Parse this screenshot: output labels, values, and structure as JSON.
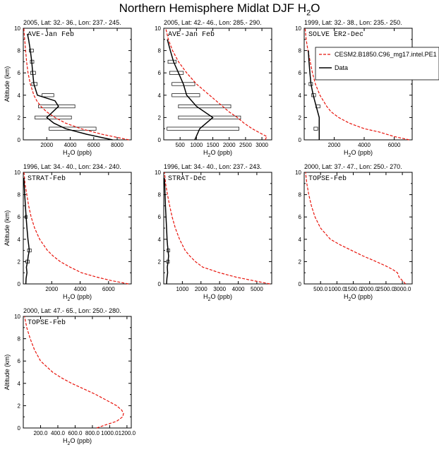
{
  "page_title": "Northern Hemisphere Midlat DJF",
  "page_title_formula": {
    "base": "H",
    "sub": "2",
    "tail": "O"
  },
  "chart_data": [
    {
      "type": "line",
      "header": "2005, Lat: 32.- 36., Lon: 237.- 245.",
      "label": "AVE-Jan Feb",
      "xlabel": "H2O (ppb)",
      "ylabel": "Altitude (km)",
      "xlim": [
        0,
        9200
      ],
      "ylim": [
        0,
        10
      ],
      "xticks": [
        2000,
        4000,
        6000,
        8000
      ],
      "xtick_labels": [
        "2000",
        "4000",
        "6000",
        "8000"
      ],
      "yticks": [
        0,
        2,
        4,
        6,
        8,
        10
      ],
      "ytick_labels": [
        "0",
        "2",
        "4",
        "6",
        "8",
        "10"
      ],
      "model": {
        "name": "CESM2.B1850.C96_mg17.intel.PE1",
        "y": [
          0,
          0.5,
          1,
          1.5,
          2,
          2.5,
          3,
          3.5,
          4,
          5,
          6,
          7,
          8,
          9,
          9.5,
          10
        ],
        "x": [
          9000,
          6700,
          4900,
          3600,
          2700,
          2000,
          1500,
          1150,
          900,
          600,
          400,
          280,
          200,
          120,
          80,
          50
        ]
      },
      "data": {
        "name": "Data",
        "y": [
          0,
          0.5,
          1,
          1.5,
          2,
          2.5,
          3,
          3.5,
          4,
          5,
          6,
          7,
          8,
          9,
          9.5
        ],
        "x": [
          7600,
          5400,
          3600,
          2600,
          2000,
          2500,
          3000,
          2700,
          1200,
          900,
          800,
          720,
          600,
          450,
          350
        ]
      },
      "bars": [
        {
          "y": 1,
          "lo": 2200,
          "hi": 6200
        },
        {
          "y": 2,
          "lo": 1000,
          "hi": 4100
        },
        {
          "y": 3,
          "lo": 1300,
          "hi": 4400
        },
        {
          "y": 4,
          "lo": 1600,
          "hi": 2600
        },
        {
          "y": 5,
          "lo": 720,
          "hi": 1180
        },
        {
          "y": 6,
          "lo": 620,
          "hi": 1040
        },
        {
          "y": 7,
          "lo": 600,
          "hi": 900
        },
        {
          "y": 8,
          "lo": 520,
          "hi": 860
        }
      ]
    },
    {
      "type": "line",
      "header": "2005, Lat: 42.- 46., Lon: 285.- 290.",
      "label": "AVE-Jan Feb",
      "xlabel": "H2O (ppb)",
      "ylabel": "",
      "xlim": [
        0,
        3300
      ],
      "ylim": [
        0,
        10
      ],
      "xticks": [
        500,
        1000,
        1500,
        2000,
        2500,
        3000
      ],
      "xtick_labels": [
        "500",
        "1000",
        "1500",
        "2000",
        "2500",
        "3000"
      ],
      "yticks": [
        0,
        2,
        4,
        6,
        8,
        10
      ],
      "ytick_labels": [
        "0",
        "2",
        "4",
        "6",
        "8",
        "10"
      ],
      "model": {
        "name": "CESM2.B1850.C96_mg17.intel.PE1",
        "y": [
          0,
          0.3,
          0.6,
          1,
          1.5,
          2,
          2.5,
          3,
          3.5,
          4,
          5,
          6,
          7,
          8,
          9,
          10
        ],
        "x": [
          3100,
          3150,
          2950,
          2700,
          2450,
          2250,
          2000,
          1800,
          1600,
          1400,
          1000,
          700,
          450,
          270,
          140,
          60
        ]
      },
      "data": {
        "name": "Data",
        "y": [
          0,
          1,
          2,
          3,
          4,
          5,
          6,
          7,
          8,
          9
        ],
        "x": [
          950,
          1100,
          1500,
          1000,
          700,
          600,
          450,
          300,
          200,
          110
        ]
      },
      "bars": [
        {
          "y": 1,
          "lo": 100,
          "hi": 2300
        },
        {
          "y": 2,
          "lo": 450,
          "hi": 2350
        },
        {
          "y": 3,
          "lo": 450,
          "hi": 2050
        },
        {
          "y": 4,
          "lo": 250,
          "hi": 1100
        },
        {
          "y": 5,
          "lo": 250,
          "hi": 950
        },
        {
          "y": 6,
          "lo": 180,
          "hi": 600
        },
        {
          "y": 7,
          "lo": 130,
          "hi": 380
        }
      ]
    },
    {
      "type": "line",
      "header": "1999, Lat: 32.- 38., Lon: 235.- 250.",
      "label": "SOLVE ER2-Dec",
      "xlabel": "H2O (ppb)",
      "ylabel": "",
      "xlim": [
        0,
        7200
      ],
      "ylim": [
        0,
        10
      ],
      "xticks": [
        2000,
        4000,
        6000
      ],
      "xtick_labels": [
        "2000",
        "4000",
        "6000"
      ],
      "yticks": [
        0,
        2,
        4,
        6,
        8,
        10
      ],
      "ytick_labels": [
        "0",
        "2",
        "4",
        "6",
        "8",
        "10"
      ],
      "legend": {
        "position": "top-right",
        "model_label": "CESM2.B1850.C96_mg17.intel.PE1",
        "data_label": "Data"
      },
      "model": {
        "name": "CESM2.B1850.C96_mg17.intel.PE1",
        "y": [
          0,
          0.3,
          0.7,
          1,
          1.5,
          2,
          2.5,
          3,
          4,
          5,
          6,
          7,
          8,
          9,
          10
        ],
        "x": [
          7000,
          6000,
          5000,
          4000,
          3000,
          2300,
          1800,
          1500,
          1050,
          750,
          550,
          400,
          250,
          130,
          60
        ]
      },
      "data": {
        "name": "Data",
        "y": [
          0,
          1,
          2,
          3,
          4,
          5,
          6,
          7,
          8
        ],
        "x": [
          1000,
          1000,
          1000,
          800,
          600,
          450,
          380,
          320,
          280
        ]
      },
      "bars": [
        {
          "y": 1,
          "lo": 650,
          "hi": 900
        },
        {
          "y": 3,
          "lo": 780,
          "hi": 1050
        },
        {
          "y": 4,
          "lo": 500,
          "hi": 760
        },
        {
          "y": 5,
          "lo": 320,
          "hi": 560
        }
      ]
    },
    {
      "type": "line",
      "header": "1996, Lat: 34.- 40., Lon: 234.- 240.",
      "label": "STRAT-Feb",
      "xlabel": "H2O (ppb)",
      "ylabel": "Altitude (km)",
      "xlim": [
        0,
        7600
      ],
      "ylim": [
        0,
        10
      ],
      "xticks": [
        2000,
        4000,
        6000
      ],
      "xtick_labels": [
        "2000",
        "4000",
        "6000"
      ],
      "yticks": [
        0,
        2,
        4,
        6,
        8,
        10
      ],
      "ytick_labels": [
        "0",
        "2",
        "4",
        "6",
        "8",
        "10"
      ],
      "model": {
        "name": "CESM2.B1850.C96_mg17.intel.PE1",
        "y": [
          0,
          0.3,
          0.6,
          1,
          1.5,
          2,
          2.5,
          3,
          4,
          5,
          6,
          7,
          8,
          9,
          10
        ],
        "x": [
          7400,
          6200,
          5200,
          4100,
          3300,
          2600,
          2100,
          1700,
          1150,
          800,
          550,
          380,
          250,
          120,
          50
        ]
      },
      "data": {
        "name": "Data",
        "y": [
          0,
          0.5,
          1,
          1.5,
          2,
          2.5,
          3,
          3.5,
          4,
          5,
          6,
          7,
          8,
          9,
          9.5
        ],
        "x": [
          180,
          200,
          260,
          220,
          300,
          350,
          420,
          380,
          330,
          260,
          200,
          150,
          100,
          60,
          40
        ]
      },
      "bars": [
        {
          "y": 2,
          "lo": 180,
          "hi": 420
        },
        {
          "y": 3,
          "lo": 300,
          "hi": 560
        },
        {
          "y": 6,
          "lo": 130,
          "hi": 270
        }
      ]
    },
    {
      "type": "line",
      "header": "1996, Lat: 34.- 40., Lon: 237.- 243.",
      "label": "STRAT-Dec",
      "xlabel": "H2O (ppb)",
      "ylabel": "",
      "xlim": [
        0,
        5800
      ],
      "ylim": [
        0,
        10
      ],
      "xticks": [
        1000,
        2000,
        3000,
        4000,
        5000
      ],
      "xtick_labels": [
        "1000",
        "2000",
        "3000",
        "4000",
        "5000"
      ],
      "yticks": [
        0,
        2,
        4,
        6,
        8,
        10
      ],
      "ytick_labels": [
        "0",
        "2",
        "4",
        "6",
        "8",
        "10"
      ],
      "model": {
        "name": "CESM2.B1850.C96_mg17.intel.PE1",
        "y": [
          0,
          0.3,
          0.6,
          1,
          1.5,
          2,
          2.5,
          3,
          4,
          5,
          6,
          7,
          8,
          9,
          10
        ],
        "x": [
          5700,
          4800,
          3900,
          3000,
          2100,
          1700,
          1400,
          1150,
          850,
          620,
          450,
          320,
          200,
          100,
          40
        ]
      },
      "data": {
        "name": "Data",
        "y": [
          0,
          0.5,
          1,
          1.5,
          2,
          2.5,
          3,
          3.5,
          4,
          5,
          6,
          7,
          8,
          9,
          9.5
        ],
        "x": [
          150,
          170,
          210,
          190,
          230,
          260,
          230,
          200,
          180,
          150,
          120,
          90,
          70,
          50,
          30
        ]
      },
      "bars": [
        {
          "y": 2,
          "lo": 150,
          "hi": 300
        },
        {
          "y": 3,
          "lo": 170,
          "hi": 320
        }
      ]
    },
    {
      "type": "line",
      "header": "2000, Lat: 37.- 47., Lon: 250.- 270.",
      "label": "TOPSE-Feb",
      "xlabel": "H2O (ppb)",
      "ylabel": "",
      "xlim": [
        0,
        3300
      ],
      "ylim": [
        0,
        10
      ],
      "xticks": [
        500,
        1000,
        1500,
        2000,
        2500,
        3000
      ],
      "xtick_labels": [
        "500.0",
        "1000.0",
        "1500.0",
        "2000.0",
        "2500.0",
        "3000.0"
      ],
      "yticks": [
        0,
        2,
        4,
        6,
        8,
        10
      ],
      "ytick_labels": [
        "0",
        "2",
        "4",
        "6",
        "8",
        "10"
      ],
      "model": {
        "name": "CESM2.B1850.C96_mg17.intel.PE1",
        "y": [
          0,
          0.3,
          0.6,
          1,
          1.3,
          1.6,
          2,
          2.5,
          3,
          3.5,
          4,
          5,
          6,
          7,
          8,
          9,
          10
        ],
        "x": [
          3100,
          3000,
          2900,
          2850,
          2700,
          2500,
          2200,
          1800,
          1450,
          1100,
          800,
          500,
          330,
          220,
          140,
          80,
          40
        ]
      }
    },
    {
      "type": "line",
      "header": "2000, Lat: 47.- 65., Lon: 250.- 280.",
      "label": "TOPSE-Feb",
      "xlabel": "H2O (ppb)",
      "ylabel": "Altitude (km)",
      "xlim": [
        0,
        1250
      ],
      "ylim": [
        0,
        10
      ],
      "xticks": [
        200,
        400,
        600,
        800,
        1000,
        1200
      ],
      "xtick_labels": [
        "200.0",
        "400.0",
        "600.0",
        "800.0",
        "1000.0",
        "1200.0"
      ],
      "yticks": [
        0,
        2,
        4,
        6,
        8,
        10
      ],
      "ytick_labels": [
        "0",
        "2",
        "4",
        "6",
        "8",
        "10"
      ],
      "model": {
        "name": "CESM2.B1850.C96_mg17.intel.PE1",
        "y": [
          0,
          0.3,
          0.6,
          1,
          1.3,
          1.6,
          2,
          2.5,
          3,
          3.5,
          4,
          4.5,
          5,
          6,
          7,
          8,
          9,
          10
        ],
        "x": [
          850,
          960,
          1080,
          1150,
          1160,
          1140,
          1080,
          960,
          840,
          700,
          560,
          440,
          340,
          200,
          130,
          80,
          40,
          15
        ]
      }
    }
  ]
}
